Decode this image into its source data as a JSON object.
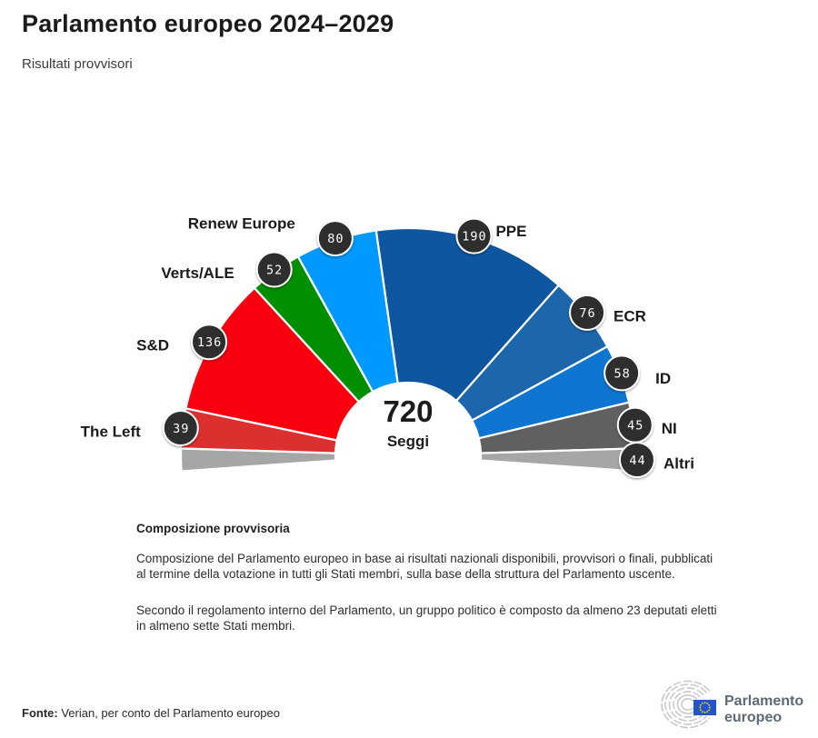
{
  "header": {
    "title": "Parlamento europeo 2024–2029",
    "subtitle": "Risultati provvisori"
  },
  "chart_data": {
    "type": "hemicycle",
    "title": "Parlamento europeo 2024–2029",
    "subtitle": "Risultati provvisori",
    "total_seats": 720,
    "center": {
      "total": "720",
      "unit": "Seggi"
    },
    "groups": [
      {
        "id": "left",
        "label": "The Left",
        "seats": 39,
        "color": "#dc2f2f"
      },
      {
        "id": "sd",
        "label": "S&D",
        "seats": 136,
        "color": "#f8000e"
      },
      {
        "id": "verts",
        "label": "Verts/ALE",
        "seats": 52,
        "color": "#008f00"
      },
      {
        "id": "renew",
        "label": "Renew Europe",
        "seats": 80,
        "color": "#0099ff"
      },
      {
        "id": "ppe",
        "label": "PPE",
        "seats": 190,
        "color": "#0e56a0"
      },
      {
        "id": "ecr",
        "label": "ECR",
        "seats": 76,
        "color": "#1c67ac"
      },
      {
        "id": "idg",
        "label": "ID",
        "seats": 58,
        "color": "#0e76d1"
      },
      {
        "id": "ni",
        "label": "NI",
        "seats": 45,
        "color": "#606060"
      },
      {
        "id": "altri",
        "label": "Altri",
        "seats": 44,
        "color": "#a6a6a6"
      }
    ],
    "layout": {
      "start_angle_deg": 184,
      "arc_span_deg": 188,
      "others_split_ends": [
        22,
        22
      ],
      "badge_bg": "#2e2e2e",
      "badge_text_color": "#ffffff",
      "grid": false,
      "legend": "labels-around-arc"
    }
  },
  "description": {
    "heading": "Composizione provvisoria",
    "paragraph1": "Composizione del Parlamento europeo in base ai risultati nazionali disponibili, provvisori o finali, pubblicati al termine della votazione in tutti gli Stati membri, sulla base della struttura del Parlamento uscente.",
    "paragraph2": "Secondo il regolamento interno del Parlamento, un gruppo politico è composto da almeno 23 deputati eletti in almeno sette Stati membri."
  },
  "footer": {
    "source_label": "Fonte:",
    "source_text": " Verian, per conto del Parlamento europeo"
  },
  "logo": {
    "line1": "Parlamento",
    "line2": "europeo"
  }
}
